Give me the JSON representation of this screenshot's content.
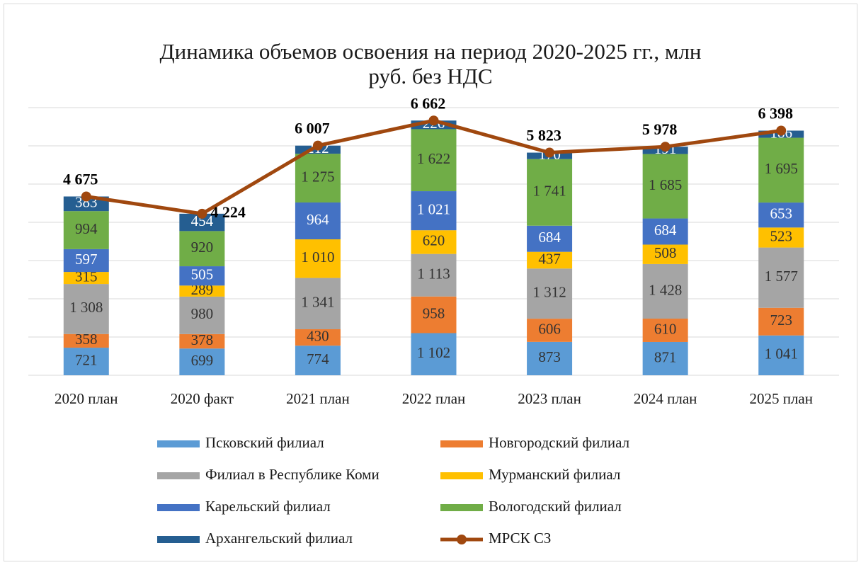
{
  "chart_data": {
    "type": "stacked_bar_line",
    "title": [
      "Динамика объемов освоения на период 2020-2025 гг., млн",
      "руб. без НДС"
    ],
    "categories": [
      "2020 план",
      "2020 факт",
      "2021 план",
      "2022 план",
      "2023 план",
      "2024 план",
      "2025 план"
    ],
    "ylim": [
      0,
      7000
    ],
    "yticks": [
      0,
      1000,
      2000,
      3000,
      4000,
      5000,
      6000,
      7000
    ],
    "grid": true,
    "legend": "bottom",
    "series": [
      {
        "name": "Псковский филиал",
        "color": "#5b9bd5",
        "values": [
          721,
          699,
          774,
          1102,
          873,
          871,
          1041
        ],
        "value_labels": [
          "721",
          "699",
          "774",
          "1 102",
          "873",
          "871",
          "1 041"
        ]
      },
      {
        "name": "Новгородский филиал",
        "color": "#ed7d31",
        "values": [
          358,
          378,
          430,
          958,
          606,
          610,
          723
        ],
        "value_labels": [
          "358",
          "378",
          "430",
          "958",
          "606",
          "610",
          "723"
        ]
      },
      {
        "name": "Филиал  в Республике Коми",
        "color": "#a5a5a5",
        "values": [
          1308,
          980,
          1341,
          1113,
          1312,
          1428,
          1577
        ],
        "value_labels": [
          "1 308",
          "980",
          "1 341",
          "1 113",
          "1 312",
          "1 428",
          "1 577"
        ]
      },
      {
        "name": "Мурманский филиал",
        "color": "#ffc000",
        "values": [
          315,
          289,
          1010,
          620,
          437,
          508,
          523
        ],
        "value_labels": [
          "315",
          "289",
          "1 010",
          "620",
          "437",
          "508",
          "523"
        ]
      },
      {
        "name": "Карельский филиал",
        "color": "#4472c4",
        "values": [
          597,
          505,
          964,
          1021,
          684,
          684,
          653
        ],
        "value_labels": [
          "597",
          "505",
          "964",
          "1 021",
          "684",
          "684",
          "653"
        ]
      },
      {
        "name": "Вологодский филиал",
        "color": "#70ad47",
        "values": [
          994,
          920,
          1275,
          1622,
          1741,
          1685,
          1695
        ],
        "value_labels": [
          "994",
          "920",
          "1 275",
          "1 622",
          "1 741",
          "1 685",
          "1 695"
        ]
      },
      {
        "name": "Архангельский филиал",
        "color": "#255e91",
        "values": [
          383,
          454,
          212,
          226,
          170,
          191,
          186
        ],
        "value_labels": [
          "383",
          "454",
          "212",
          "226",
          "170",
          "191",
          "186"
        ]
      },
      {
        "name": "МРСК СЗ",
        "type": "line",
        "color": "#a0480f",
        "values": [
          4675,
          4224,
          6007,
          6662,
          5823,
          5978,
          6398
        ],
        "value_labels": [
          "4 675",
          "4 224",
          "6 007",
          "6 662",
          "5 823",
          "5 978",
          "6 398"
        ]
      }
    ]
  }
}
